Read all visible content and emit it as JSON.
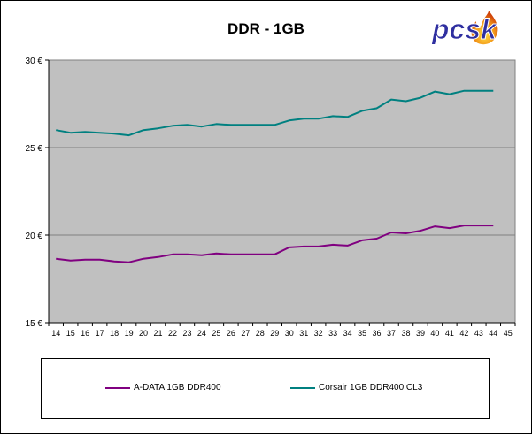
{
  "chart_data": {
    "type": "line",
    "title": "DDR - 1GB",
    "xlabel": "",
    "ylabel": "",
    "x": [
      14,
      15,
      16,
      17,
      18,
      19,
      20,
      21,
      22,
      23,
      24,
      25,
      26,
      27,
      28,
      29,
      30,
      31,
      32,
      33,
      34,
      35,
      36,
      37,
      38,
      39,
      40,
      41,
      42,
      43,
      44
    ],
    "x_ticks": [
      "14",
      "15",
      "16",
      "17",
      "18",
      "19",
      "20",
      "21",
      "22",
      "23",
      "24",
      "25",
      "26",
      "27",
      "28",
      "29",
      "30",
      "31",
      "32",
      "33",
      "34",
      "35",
      "36",
      "37",
      "38",
      "39",
      "40",
      "41",
      "42",
      "43",
      "44",
      "45"
    ],
    "xlim": [
      14,
      45
    ],
    "ylim": [
      15,
      30
    ],
    "y_ticks": [
      15,
      20,
      25,
      30
    ],
    "y_tick_labels": [
      "15 €",
      "20 €",
      "25 €",
      "30 €"
    ],
    "grid": "horizontal",
    "legend_position": "bottom",
    "plot_background": "#c0c0c0",
    "series": [
      {
        "name": "A-DATA 1GB DDR400",
        "color": "#800080",
        "values": [
          18.65,
          18.55,
          18.6,
          18.6,
          18.5,
          18.45,
          18.65,
          18.75,
          18.9,
          18.9,
          18.85,
          18.95,
          18.9,
          18.9,
          18.9,
          18.9,
          19.3,
          19.35,
          19.35,
          19.45,
          19.4,
          19.7,
          19.8,
          20.15,
          20.1,
          20.25,
          20.5,
          20.4,
          20.55,
          20.55,
          20.55
        ]
      },
      {
        "name": "Corsair 1GB DDR400 CL3",
        "color": "#008080",
        "values": [
          26.0,
          25.85,
          25.9,
          25.85,
          25.8,
          25.7,
          26.0,
          26.1,
          26.25,
          26.3,
          26.2,
          26.35,
          26.3,
          26.3,
          26.3,
          26.3,
          26.55,
          26.65,
          26.65,
          26.8,
          26.75,
          27.1,
          27.25,
          27.75,
          27.65,
          27.85,
          28.2,
          28.05,
          28.25,
          28.25,
          28.25
        ]
      }
    ]
  },
  "logo": {
    "text": "pcsk",
    "color": "#3333aa",
    "flame_color": "#f07010"
  }
}
